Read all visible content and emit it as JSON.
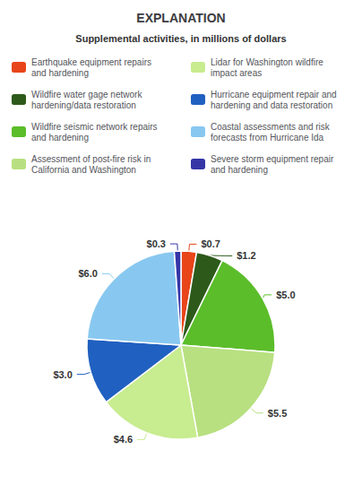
{
  "chart_data": {
    "type": "pie",
    "title": "EXPLANATION",
    "subtitle": "Supplemental activities, in millions of dollars",
    "categories": [
      "Earthquake equipment repairs\nand hardening",
      "Wildfire water gage network\nhardening/data restoration",
      "Wildfire seismic network repairs\nand hardening",
      "Assessment of post-fire risk in\nCalifornia and Washington",
      "Lidar for Washington wildfire\nimpact areas",
      "Hurricane equipment repair and\nhardening and data restoration",
      "Coastal assessments and risk\nforecasts from Hurricane Ida",
      "Severe storm equipment repair\nand hardening"
    ],
    "values": [
      0.7,
      1.2,
      5.0,
      5.5,
      4.6,
      3.0,
      6.0,
      0.3
    ],
    "value_labels": [
      "$0.7",
      "$1.2",
      "$5.0",
      "$5.5",
      "$4.6",
      "$3.0",
      "$6.0",
      "$0.3"
    ],
    "colors": [
      "#E8451A",
      "#2D5A1B",
      "#5BBD2A",
      "#B8E080",
      "#C8EC90",
      "#2060C0",
      "#88C8F0",
      "#3535A8"
    ],
    "data_labels": true,
    "legend": "top"
  }
}
